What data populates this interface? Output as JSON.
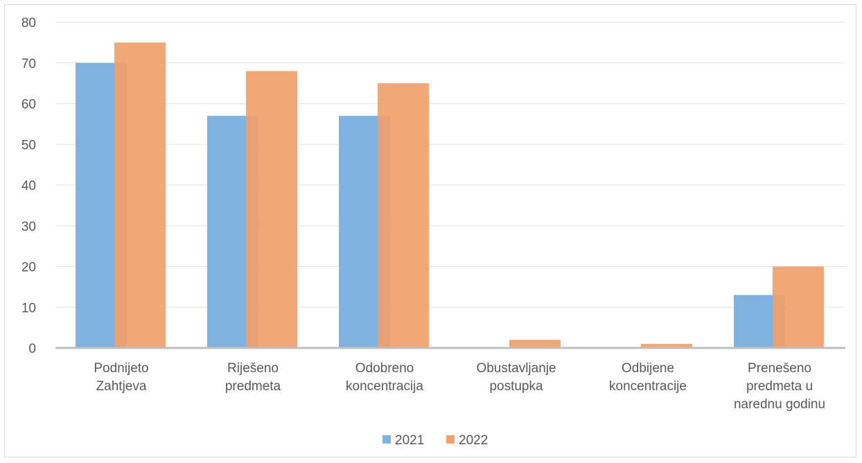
{
  "chart_data": {
    "type": "bar",
    "title": "",
    "xlabel": "",
    "ylabel": "",
    "ylim": [
      0,
      80
    ],
    "yticks": [
      "0",
      "10",
      "20",
      "30",
      "40",
      "50",
      "60",
      "70",
      "80"
    ],
    "grid": true,
    "legend_position": "bottom",
    "categories": [
      [
        "Podnijeto",
        "Zahtjeva"
      ],
      [
        "Riješeno",
        "predmeta"
      ],
      [
        "Odobreno",
        "koncentracija"
      ],
      [
        "Obustavljanje",
        "postupka"
      ],
      [
        "Odbijene",
        "koncentracije"
      ],
      [
        "Prenešeno",
        "predmeta  u",
        "narednu  godinu"
      ]
    ],
    "series": [
      {
        "name": "2021",
        "color": "#7fb2df",
        "values": [
          70,
          57,
          57,
          0,
          0,
          13
        ]
      },
      {
        "name": "2022",
        "color": "#f0a06a",
        "values": [
          75,
          68,
          65,
          2,
          1,
          20
        ]
      }
    ]
  }
}
